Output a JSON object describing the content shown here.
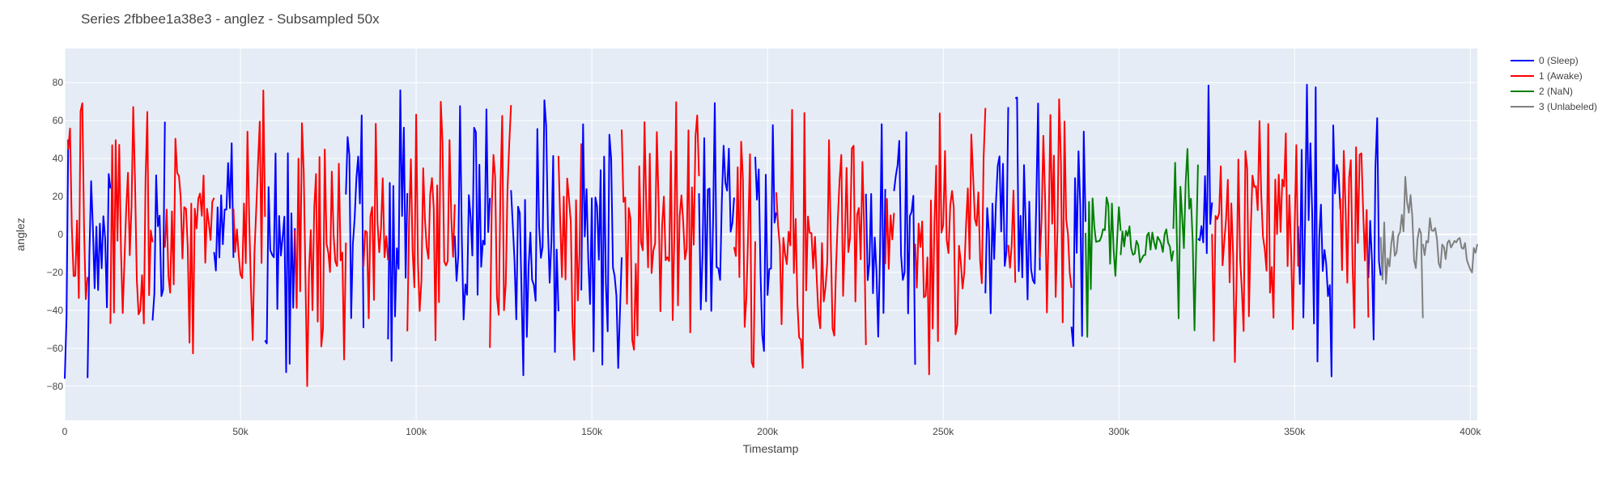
{
  "chart_data": {
    "type": "line",
    "title": "Series 2fbbee1a38e3 - anglez - Subsampled 50x",
    "xlabel": "Timestamp",
    "ylabel": "anglez",
    "xlim": [
      0,
      402000
    ],
    "ylim": [
      -98,
      98
    ],
    "x_ticks": [
      0,
      50000,
      100000,
      150000,
      200000,
      250000,
      300000,
      350000,
      400000
    ],
    "x_tick_labels": [
      "0",
      "50k",
      "100k",
      "150k",
      "200k",
      "250k",
      "300k",
      "350k",
      "400k"
    ],
    "y_ticks": [
      -80,
      -60,
      -40,
      -20,
      0,
      20,
      40,
      60,
      80
    ],
    "y_tick_labels": [
      "−80",
      "−60",
      "−40",
      "−20",
      "0",
      "20",
      "40",
      "60",
      "80"
    ],
    "grid": true,
    "legend_position": "top-right",
    "background": "#e5ecf6",
    "sample_step": 500,
    "series": [
      {
        "name": "0 (Sleep)",
        "color": "#0000ff",
        "amplitude": 85,
        "segments": [
          [
            0,
            1000
          ],
          [
            6500,
            13000
          ],
          [
            25000,
            28500
          ],
          [
            42500,
            48000
          ],
          [
            57000,
            65500
          ],
          [
            80000,
            85000
          ],
          [
            92000,
            97500
          ],
          [
            111000,
            121000
          ],
          [
            127000,
            140500
          ],
          [
            147000,
            158500
          ],
          [
            180500,
            190500
          ],
          [
            196500,
            202500
          ],
          [
            228000,
            233500
          ],
          [
            236000,
            242000
          ],
          [
            262000,
            268500
          ],
          [
            270500,
            277500
          ],
          [
            286500,
            290500
          ],
          [
            322500,
            326500
          ],
          [
            351000,
            363000
          ],
          [
            371000,
            374500
          ]
        ]
      },
      {
        "name": "1 (Awake)",
        "color": "#ff0000",
        "amplitude": 82,
        "segments": [
          [
            1000,
            6500
          ],
          [
            13000,
            25000
          ],
          [
            28500,
            42500
          ],
          [
            48000,
            57000
          ],
          [
            65500,
            80000
          ],
          [
            85000,
            92000
          ],
          [
            97500,
            111000
          ],
          [
            121000,
            127000
          ],
          [
            140500,
            147000
          ],
          [
            158500,
            180500
          ],
          [
            190500,
            196500
          ],
          [
            202500,
            228000
          ],
          [
            233500,
            236000
          ],
          [
            242000,
            262000
          ],
          [
            268500,
            270500
          ],
          [
            277500,
            286500
          ],
          [
            326500,
            351000
          ],
          [
            363000,
            371000
          ]
        ]
      },
      {
        "name": "2 (NaN)",
        "color": "#008000",
        "amplitude": 55,
        "segments": [
          [
            290500,
            300500
          ],
          [
            315500,
            322500
          ]
        ],
        "quiet_segments": [
          [
            300500,
            315500
          ]
        ]
      },
      {
        "name": "3 (Unlabeled)",
        "color": "#808080",
        "amplitude": 55,
        "segments": [
          [
            374500,
            386500
          ]
        ],
        "quiet_segments": [
          [
            386500,
            402000
          ]
        ]
      }
    ]
  }
}
